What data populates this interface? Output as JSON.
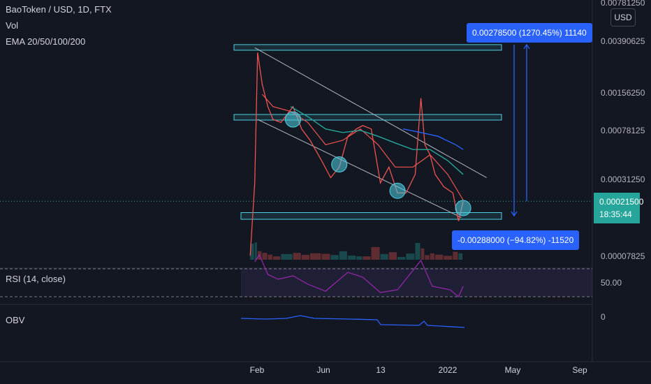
{
  "header": {
    "symbol_line": "BaoToken / USD, 1D, FTX",
    "vol_label": "Vol",
    "ema_label": "EMA 20/50/100/200",
    "rsi_label": "RSI (14, close)",
    "obv_label": "OBV",
    "currency_badge": "USD"
  },
  "annotations": {
    "top_measure": "0.00278500 (1270.45%) 11140",
    "bottom_measure": "-0.00288000 (−94.82%) -11520"
  },
  "current_price": {
    "price": "0.00021500",
    "countdown": "18:35:44"
  },
  "colors": {
    "background": "#131722",
    "zone_cyan": "#4dd0e1",
    "measure_blue": "#2962ff",
    "rsi_purple": "#9c27b0",
    "obv_blue": "#2962ff",
    "ema_red": "#ef5350",
    "ema_teal": "#26a69a",
    "ema_blue": "#2962ff",
    "current_price_green": "#26a69a"
  },
  "chart_data": {
    "type": "line",
    "price_axis_ticks": [
      "0.00781250",
      "0.00390625",
      "0.00156250",
      "0.00078125",
      "0.00031250",
      "0.00007825"
    ],
    "rsi_axis_ticks": [
      "50.00"
    ],
    "obv_axis_ticks": [
      "0"
    ],
    "x_ticks": [
      "Feb",
      "Jun",
      "13",
      "2022",
      "May",
      "Sep"
    ],
    "scale": "log",
    "series": [
      {
        "x": [
          "2021-01-20",
          "2021-01-28",
          "2021-02-02",
          "2021-02-10",
          "2021-02-20",
          "2021-03-01",
          "2021-03-15",
          "2021-04-05",
          "2021-04-20",
          "2021-05-05",
          "2021-05-25",
          "2021-06-10",
          "2021-06-25",
          "2021-07-10",
          "2021-07-25",
          "2021-08-05",
          "2021-08-20",
          "2021-09-05",
          "2021-09-20",
          "2021-10-05",
          "2021-10-20",
          "2021-11-05",
          "2021-11-15",
          "2021-11-22",
          "2021-12-01",
          "2021-12-10",
          "2021-12-25",
          "2022-01-10",
          "2022-01-20",
          "2022-01-28"
        ],
        "values": [
          8e-05,
          0.0003,
          0.0032,
          0.0018,
          0.0012,
          0.00095,
          0.0009,
          0.0012,
          0.0008,
          0.00065,
          0.00045,
          0.00033,
          0.0004,
          0.0007,
          0.0008,
          0.00085,
          0.0008,
          0.0003,
          0.0004,
          0.00025,
          0.00025,
          0.00035,
          0.0014,
          0.0006,
          0.0005,
          0.00035,
          0.00028,
          0.00025,
          0.00015,
          0.000215
        ]
      },
      {
        "x": [
          "2021-02-10",
          "2021-03-01",
          "2021-04-01",
          "2021-05-01",
          "2021-06-01",
          "2021-07-01",
          "2021-08-01",
          "2021-09-01",
          "2021-10-01",
          "2021-11-01",
          "2021-12-01",
          "2022-01-01",
          "2022-01-28"
        ],
        "values": [
          0.0015,
          0.0012,
          0.0011,
          0.0009,
          0.0006,
          0.00065,
          0.0008,
          0.0006,
          0.0004,
          0.0004,
          0.0005,
          0.00035,
          0.00022
        ]
      },
      {
        "x": [
          "2021-04-01",
          "2021-05-01",
          "2021-06-01",
          "2021-07-01",
          "2021-08-01",
          "2021-09-01",
          "2021-10-01",
          "2021-11-01",
          "2021-12-01",
          "2022-01-01",
          "2022-01-28"
        ],
        "values": [
          0.0012,
          0.001,
          0.0008,
          0.00075,
          0.00078,
          0.0007,
          0.00062,
          0.00055,
          0.00055,
          0.00045,
          0.00035
        ]
      },
      {
        "x": [
          "2021-10-15",
          "2021-11-15",
          "2021-12-15",
          "2022-01-15",
          "2022-01-28"
        ],
        "values": [
          0.0008,
          0.00075,
          0.0007,
          0.0006,
          0.00055
        ]
      }
    ],
    "rsi": {
      "x": [
        "2021-01-28",
        "2021-02-05",
        "2021-02-20",
        "2021-03-10",
        "2021-04-05",
        "2021-05-01",
        "2021-06-01",
        "2021-07-10",
        "2021-08-05",
        "2021-09-05",
        "2021-10-05",
        "2021-11-15",
        "2021-12-05",
        "2022-01-05",
        "2022-01-20",
        "2022-01-28"
      ],
      "values": [
        80,
        90,
        62,
        55,
        60,
        48,
        38,
        65,
        58,
        36,
        40,
        82,
        45,
        40,
        30,
        45
      ]
    },
    "zones": [
      {
        "label": "resistance-high",
        "y_low": 0.0034,
        "y_high": 0.0037
      },
      {
        "label": "resistance-mid",
        "y_low": 0.00094,
        "y_high": 0.00104
      },
      {
        "label": "support-low",
        "y_low": 0.000155,
        "y_high": 0.000175
      }
    ],
    "channel_lines": [
      {
        "x": [
          "2021-01-28",
          "2022-03-10"
        ],
        "y": [
          0.0035,
          0.00033
        ]
      },
      {
        "x": [
          "2021-02-02",
          "2022-01-25"
        ],
        "y": [
          0.00095,
          0.00016
        ]
      }
    ],
    "grid": true
  }
}
